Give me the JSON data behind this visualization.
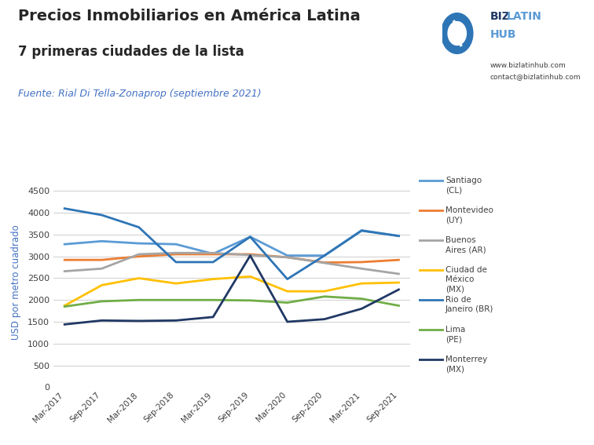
{
  "title_line1": "Precios Inmobiliarios en América Latina",
  "title_line2": "7 primeras ciudades de la lista",
  "source": "Fuente: Rial Di Tella-Zonaprop (septiembre 2021)",
  "website": "www.bizlatinhub.com",
  "contact": "contact@bizlatinhub.com",
  "ylabel": "USD por metro cuadrado",
  "x_labels": [
    "Mar-2017",
    "Sep-2017",
    "Mar-2018",
    "Sep-2018",
    "Mar-2019",
    "Sep-2019",
    "Mar-2020",
    "Sep-2020",
    "Mar-2021",
    "Sep-2021"
  ],
  "series": [
    {
      "name": "Santiago (CL)",
      "color": "#5B9BD5",
      "values": [
        3280,
        3350,
        3300,
        3280,
        3060,
        3450,
        3020,
        3020,
        3600,
        3470
      ],
      "label1": "Santiago",
      "label2": "(CL)"
    },
    {
      "name": "Montevideo (UY)",
      "color": "#ED7D31",
      "values": [
        2920,
        2920,
        3000,
        3050,
        3050,
        3050,
        2980,
        2860,
        2870,
        2920
      ],
      "label1": "Montevideo",
      "label2": "(UY)"
    },
    {
      "name": "Buenos Aires (AR)",
      "color": "#A5A5A5",
      "values": [
        2660,
        2720,
        3050,
        3080,
        3080,
        3030,
        2980,
        2850,
        2720,
        2600
      ],
      "label1": "Buenos",
      "label2": "Aires (AR)"
    },
    {
      "name": "Ciudad de Mexico (MX)",
      "color": "#FFC000",
      "values": [
        1870,
        2340,
        2500,
        2380,
        2480,
        2540,
        2200,
        2200,
        2380,
        2400
      ],
      "label1": "Ciudad de",
      "label2": "México",
      "label3": "(MX)"
    },
    {
      "name": "Rio de Janeiro (BR)",
      "color": "#2E75B6",
      "values": [
        4100,
        3950,
        3670,
        2870,
        2870,
        3450,
        2480,
        3020,
        3590,
        3470
      ],
      "label1": "Rio de",
      "label2": "Janeiro (BR)"
    },
    {
      "name": "Lima (PE)",
      "color": "#70AD47",
      "values": [
        1850,
        1970,
        2000,
        2000,
        2000,
        1990,
        1940,
        2080,
        2030,
        1870
      ],
      "label1": "Lima",
      "label2": "(PE)"
    },
    {
      "name": "Monterrey (MX)",
      "color": "#203864",
      "values": [
        1440,
        1530,
        1520,
        1530,
        1610,
        3020,
        1500,
        1560,
        1800,
        2240
      ],
      "label1": "Monterrey",
      "label2": "(MX)"
    }
  ],
  "ylim": [
    0,
    4800
  ],
  "yticks": [
    0,
    500,
    1000,
    1500,
    2000,
    2500,
    3000,
    3500,
    4000,
    4500
  ],
  "bg_color": "#FFFFFF",
  "grid_color": "#D3D3D3",
  "title_color": "#262626",
  "source_color": "#4472C4",
  "title1_fontsize": 14,
  "title2_fontsize": 12,
  "source_fontsize": 9,
  "ylabel_color": "#4472C4",
  "linewidth": 2.0
}
